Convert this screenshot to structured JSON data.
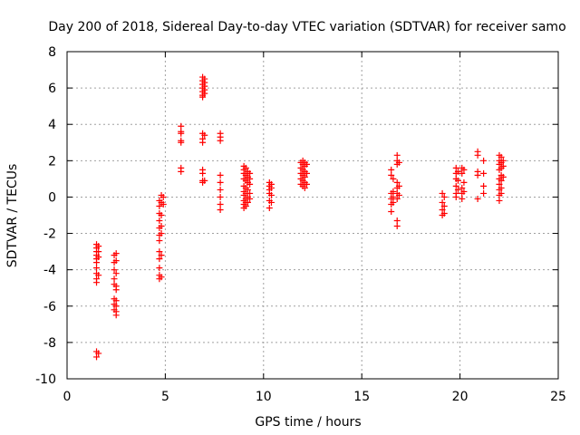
{
  "chart_data": {
    "type": "scatter",
    "title": "Day 200 of 2018, Sidereal Day-to-day VTEC variation (SDTVAR) for receiver samo",
    "xlabel": "GPS time / hours",
    "ylabel": "SDTVAR / TECUs",
    "xlim": [
      0,
      25
    ],
    "ylim": [
      -10,
      8
    ],
    "xticks": [
      0,
      5,
      10,
      15,
      20,
      25
    ],
    "yticks": [
      -10,
      -8,
      -6,
      -4,
      -2,
      0,
      2,
      4,
      6,
      8
    ],
    "grid": true,
    "marker": "plus",
    "color": "#ff0000",
    "series": [
      {
        "name": "SDTVAR",
        "points": [
          [
            1.5,
            -2.6
          ],
          [
            1.5,
            -2.8
          ],
          [
            1.5,
            -3.0
          ],
          [
            1.5,
            -3.2
          ],
          [
            1.5,
            -3.4
          ],
          [
            1.5,
            -3.6
          ],
          [
            1.5,
            -3.9
          ],
          [
            1.5,
            -4.2
          ],
          [
            1.5,
            -4.5
          ],
          [
            1.5,
            -4.7
          ],
          [
            1.5,
            -8.5
          ],
          [
            1.5,
            -8.8
          ],
          [
            1.6,
            -2.7
          ],
          [
            1.6,
            -3.0
          ],
          [
            1.6,
            -3.3
          ],
          [
            1.6,
            -4.3
          ],
          [
            1.6,
            -8.6
          ],
          [
            2.4,
            -3.2
          ],
          [
            2.4,
            -3.6
          ],
          [
            2.4,
            -4.0
          ],
          [
            2.4,
            -4.5
          ],
          [
            2.4,
            -4.8
          ],
          [
            2.4,
            -5.6
          ],
          [
            2.4,
            -5.9
          ],
          [
            2.4,
            -6.2
          ],
          [
            2.5,
            -3.1
          ],
          [
            2.5,
            -3.5
          ],
          [
            2.5,
            -4.2
          ],
          [
            2.5,
            -4.9
          ],
          [
            2.5,
            -5.1
          ],
          [
            2.5,
            -5.7
          ],
          [
            2.5,
            -6.0
          ],
          [
            2.5,
            -6.3
          ],
          [
            2.5,
            -6.5
          ],
          [
            4.7,
            -0.2
          ],
          [
            4.7,
            -0.5
          ],
          [
            4.7,
            -0.9
          ],
          [
            4.7,
            -1.3
          ],
          [
            4.7,
            -1.7
          ],
          [
            4.7,
            -2.1
          ],
          [
            4.7,
            -2.4
          ],
          [
            4.7,
            -3.0
          ],
          [
            4.7,
            -3.4
          ],
          [
            4.7,
            -3.9
          ],
          [
            4.7,
            -4.3
          ],
          [
            4.7,
            -4.5
          ],
          [
            4.8,
            0.1
          ],
          [
            4.8,
            -0.3
          ],
          [
            4.8,
            -1.0
          ],
          [
            4.8,
            -1.6
          ],
          [
            4.8,
            -2.0
          ],
          [
            4.8,
            -3.2
          ],
          [
            4.8,
            -4.4
          ],
          [
            4.9,
            0.0
          ],
          [
            4.9,
            -0.4
          ],
          [
            5.8,
            3.9
          ],
          [
            5.8,
            3.6
          ],
          [
            5.8,
            3.5
          ],
          [
            5.8,
            3.1
          ],
          [
            5.8,
            3.0
          ],
          [
            5.8,
            1.6
          ],
          [
            5.8,
            1.4
          ],
          [
            6.9,
            6.6
          ],
          [
            6.9,
            6.4
          ],
          [
            6.9,
            6.2
          ],
          [
            6.9,
            6.0
          ],
          [
            6.9,
            5.8
          ],
          [
            6.9,
            5.6
          ],
          [
            6.9,
            5.5
          ],
          [
            6.9,
            3.5
          ],
          [
            6.9,
            3.2
          ],
          [
            6.9,
            3.0
          ],
          [
            6.9,
            1.5
          ],
          [
            6.9,
            1.3
          ],
          [
            6.9,
            0.9
          ],
          [
            6.9,
            0.8
          ],
          [
            7.0,
            6.5
          ],
          [
            7.0,
            6.3
          ],
          [
            7.0,
            6.1
          ],
          [
            7.0,
            5.9
          ],
          [
            7.0,
            5.7
          ],
          [
            7.0,
            3.4
          ],
          [
            7.0,
            0.9
          ],
          [
            7.8,
            3.5
          ],
          [
            7.8,
            3.3
          ],
          [
            7.8,
            3.1
          ],
          [
            7.8,
            1.2
          ],
          [
            7.8,
            0.8
          ],
          [
            7.8,
            0.4
          ],
          [
            7.8,
            0.0
          ],
          [
            7.8,
            -0.4
          ],
          [
            7.8,
            -0.7
          ],
          [
            9.0,
            1.7
          ],
          [
            9.0,
            1.5
          ],
          [
            9.0,
            1.3
          ],
          [
            9.0,
            1.0
          ],
          [
            9.0,
            0.6
          ],
          [
            9.0,
            0.3
          ],
          [
            9.0,
            0.1
          ],
          [
            9.0,
            -0.2
          ],
          [
            9.0,
            -0.4
          ],
          [
            9.0,
            -0.6
          ],
          [
            9.1,
            1.6
          ],
          [
            9.1,
            1.2
          ],
          [
            9.1,
            0.9
          ],
          [
            9.1,
            0.5
          ],
          [
            9.1,
            0.2
          ],
          [
            9.1,
            -0.1
          ],
          [
            9.1,
            -0.3
          ],
          [
            9.1,
            -0.5
          ],
          [
            9.2,
            1.4
          ],
          [
            9.2,
            1.1
          ],
          [
            9.2,
            0.8
          ],
          [
            9.2,
            0.4
          ],
          [
            9.2,
            0.0
          ],
          [
            9.2,
            -0.3
          ],
          [
            9.3,
            1.3
          ],
          [
            9.3,
            1.0
          ],
          [
            9.3,
            0.7
          ],
          [
            9.3,
            0.2
          ],
          [
            9.3,
            -0.1
          ],
          [
            10.3,
            0.8
          ],
          [
            10.3,
            0.6
          ],
          [
            10.3,
            0.4
          ],
          [
            10.3,
            0.2
          ],
          [
            10.3,
            -0.2
          ],
          [
            10.3,
            -0.6
          ],
          [
            10.4,
            0.7
          ],
          [
            10.4,
            0.5
          ],
          [
            10.4,
            0.1
          ],
          [
            10.4,
            -0.3
          ],
          [
            11.9,
            1.9
          ],
          [
            11.9,
            1.6
          ],
          [
            11.9,
            1.3
          ],
          [
            11.9,
            1.0
          ],
          [
            11.9,
            0.7
          ],
          [
            12.0,
            2.0
          ],
          [
            12.0,
            1.8
          ],
          [
            12.0,
            1.5
          ],
          [
            12.0,
            1.2
          ],
          [
            12.0,
            0.9
          ],
          [
            12.0,
            0.6
          ],
          [
            12.1,
            1.9
          ],
          [
            12.1,
            1.7
          ],
          [
            12.1,
            1.4
          ],
          [
            12.1,
            1.1
          ],
          [
            12.1,
            0.8
          ],
          [
            12.1,
            0.5
          ],
          [
            12.2,
            1.8
          ],
          [
            12.2,
            1.3
          ],
          [
            12.2,
            0.7
          ],
          [
            16.5,
            1.5
          ],
          [
            16.5,
            1.2
          ],
          [
            16.5,
            0.2
          ],
          [
            16.5,
            -0.1
          ],
          [
            16.5,
            -0.4
          ],
          [
            16.5,
            -0.8
          ],
          [
            16.6,
            1.0
          ],
          [
            16.6,
            0.3
          ],
          [
            16.6,
            0.0
          ],
          [
            16.6,
            -0.3
          ],
          [
            16.8,
            2.3
          ],
          [
            16.8,
            2.0
          ],
          [
            16.8,
            1.8
          ],
          [
            16.8,
            0.8
          ],
          [
            16.8,
            0.5
          ],
          [
            16.8,
            0.2
          ],
          [
            16.8,
            -0.1
          ],
          [
            16.8,
            -1.3
          ],
          [
            16.8,
            -1.6
          ],
          [
            16.9,
            1.9
          ],
          [
            16.9,
            0.6
          ],
          [
            16.9,
            0.1
          ],
          [
            19.1,
            0.2
          ],
          [
            19.1,
            -0.3
          ],
          [
            19.1,
            -0.7
          ],
          [
            19.1,
            -1.0
          ],
          [
            19.2,
            0.0
          ],
          [
            19.2,
            -0.5
          ],
          [
            19.2,
            -0.9
          ],
          [
            19.8,
            1.6
          ],
          [
            19.8,
            1.3
          ],
          [
            19.8,
            1.0
          ],
          [
            19.8,
            0.6
          ],
          [
            19.8,
            0.2
          ],
          [
            19.8,
            0.0
          ],
          [
            19.9,
            1.4
          ],
          [
            19.9,
            0.9
          ],
          [
            19.9,
            0.4
          ],
          [
            20.1,
            1.6
          ],
          [
            20.1,
            1.3
          ],
          [
            20.1,
            0.5
          ],
          [
            20.1,
            0.2
          ],
          [
            20.1,
            -0.1
          ],
          [
            20.2,
            1.5
          ],
          [
            20.2,
            0.8
          ],
          [
            20.2,
            0.3
          ],
          [
            20.9,
            2.5
          ],
          [
            20.9,
            2.3
          ],
          [
            20.9,
            1.4
          ],
          [
            20.9,
            1.2
          ],
          [
            20.9,
            -0.1
          ],
          [
            21.2,
            2.0
          ],
          [
            21.2,
            1.3
          ],
          [
            21.2,
            0.6
          ],
          [
            21.2,
            0.2
          ],
          [
            22.0,
            2.3
          ],
          [
            22.0,
            2.0
          ],
          [
            22.0,
            1.8
          ],
          [
            22.0,
            1.5
          ],
          [
            22.0,
            1.0
          ],
          [
            22.0,
            0.7
          ],
          [
            22.0,
            0.4
          ],
          [
            22.0,
            0.1
          ],
          [
            22.0,
            -0.2
          ],
          [
            22.1,
            2.2
          ],
          [
            22.1,
            1.9
          ],
          [
            22.1,
            1.6
          ],
          [
            22.1,
            1.2
          ],
          [
            22.1,
            0.9
          ],
          [
            22.1,
            0.5
          ],
          [
            22.1,
            0.2
          ],
          [
            22.2,
            2.0
          ],
          [
            22.2,
            1.7
          ],
          [
            22.2,
            1.1
          ]
        ]
      }
    ]
  }
}
